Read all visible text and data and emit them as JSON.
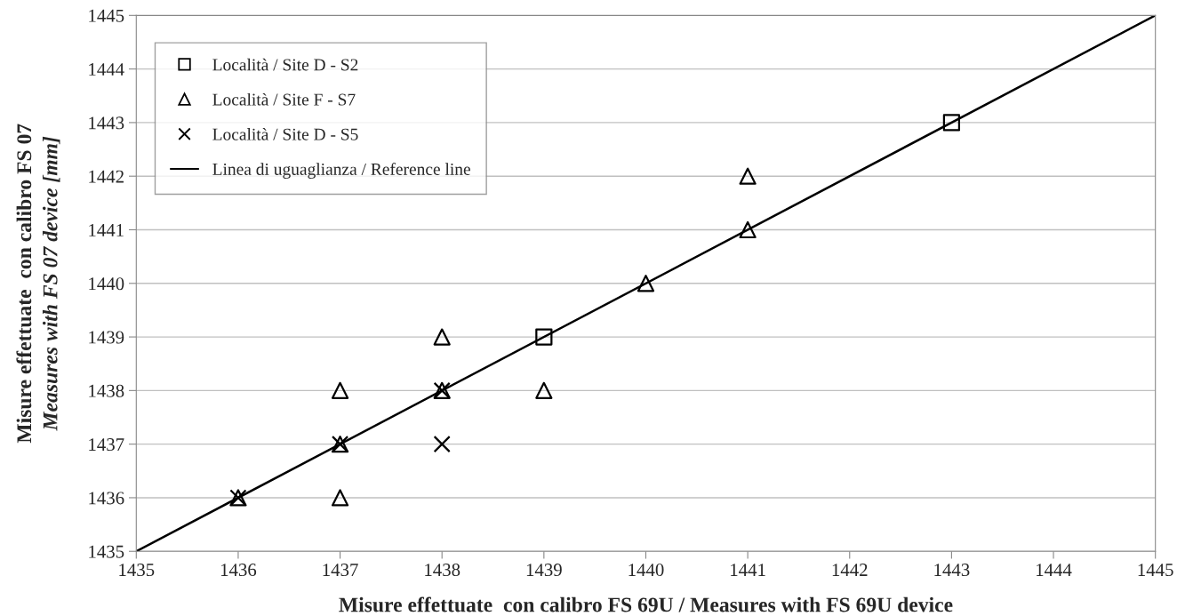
{
  "chart_data": {
    "type": "scatter",
    "xlabel": "Misure effettuate  con calibro FS 69U / Measures with FS 69U device",
    "ylabel": "Misure effettuate  con calibro FS 07\nMeasures with FS 07 device [mm]",
    "xlim": [
      1435,
      1445
    ],
    "ylim": [
      1435,
      1445
    ],
    "xticks": [
      1435,
      1436,
      1437,
      1438,
      1439,
      1440,
      1441,
      1442,
      1443,
      1444,
      1445
    ],
    "yticks": [
      1435,
      1436,
      1437,
      1438,
      1439,
      1440,
      1441,
      1442,
      1443,
      1444,
      1445
    ],
    "grid": "y",
    "legend": "top left",
    "series": [
      {
        "name": "Località / Site D - S2",
        "type": "scatter",
        "marker": "square",
        "color": "#000000",
        "x": [
          1439,
          1443
        ],
        "values": [
          1439,
          1443
        ]
      },
      {
        "name": "Località / Site F - S7",
        "type": "scatter",
        "marker": "triangle",
        "color": "#000000",
        "x": [
          1436,
          1437,
          1437,
          1437,
          1438,
          1438,
          1439,
          1440,
          1441,
          1441
        ],
        "values": [
          1436,
          1436,
          1437,
          1438,
          1438,
          1439,
          1438,
          1440,
          1441,
          1442
        ]
      },
      {
        "name": "Località / Site D - S5",
        "type": "scatter",
        "marker": "cross",
        "color": "#000000",
        "x": [
          1436,
          1437,
          1438,
          1438
        ],
        "values": [
          1436,
          1437,
          1438,
          1437
        ]
      },
      {
        "name": "Linea di uguaglianza / Reference line",
        "type": "line",
        "marker": "none",
        "line_style": "solid",
        "color": "#000000",
        "x": [
          1435,
          1445
        ],
        "values": [
          1435,
          1445
        ]
      }
    ]
  }
}
